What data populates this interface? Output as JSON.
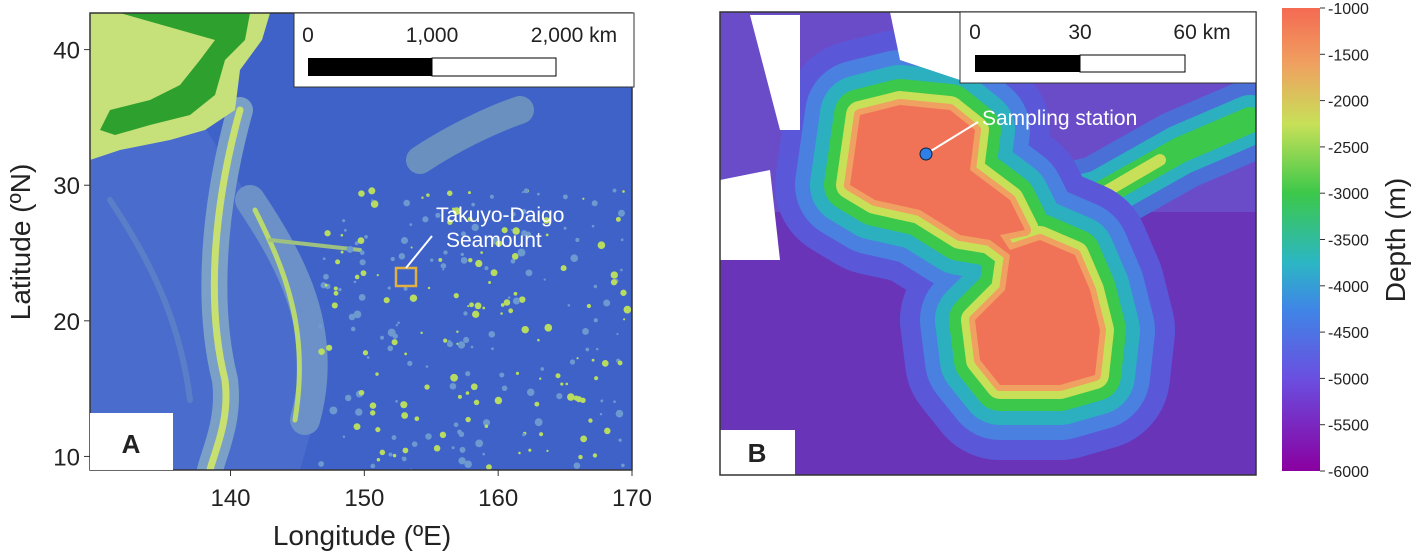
{
  "panel_a": {
    "label": "A",
    "xlabel": "Longitude (ºE)",
    "ylabel": "Latitude (ºN)",
    "xlim": [
      129.5,
      170
    ],
    "ylim": [
      9,
      42.7
    ],
    "xticks": [
      140,
      150,
      160,
      170
    ],
    "yticks": [
      10,
      20,
      30,
      40
    ],
    "scale_bar": [
      "0",
      "1,000",
      "2,000 km"
    ],
    "annotation": [
      "Takuyo-Daigo",
      "Seamount"
    ]
  },
  "panel_b": {
    "label": "B",
    "scale_bar": [
      "0",
      "30",
      "60 km"
    ],
    "annotation": "Sampling station"
  },
  "colorbar": {
    "label": "Depth (m)",
    "lim": [
      -6000,
      -1000
    ],
    "ticks": [
      -6000,
      -5500,
      -5000,
      -4500,
      -4000,
      -3500,
      -3000,
      -2500,
      -2000,
      -1500,
      -1000
    ]
  }
}
